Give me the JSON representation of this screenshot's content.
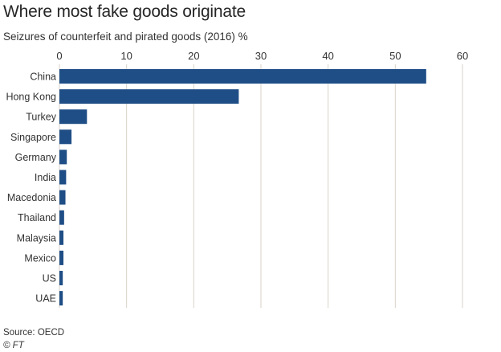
{
  "title": "Where most fake goods originate",
  "subtitle": "Seizures of counterfeit and pirated goods (2016) %",
  "source": "Source: OECD",
  "credit": "© FT",
  "colors": {
    "bar": "#1f4e86",
    "grid": "#d9d2c9",
    "text": "#333333"
  },
  "chart_data": {
    "type": "bar",
    "orientation": "horizontal",
    "title": "Where most fake goods originate",
    "subtitle": "Seizures of counterfeit and pirated goods (2016) %",
    "categories": [
      "China",
      "Hong Kong",
      "Turkey",
      "Singapore",
      "Germany",
      "India",
      "Macedonia",
      "Thailand",
      "Malaysia",
      "Mexico",
      "US",
      "UAE"
    ],
    "values": [
      54.6,
      26.7,
      4.1,
      1.8,
      1.1,
      1.0,
      0.9,
      0.7,
      0.6,
      0.6,
      0.5,
      0.5
    ],
    "xticks": [
      0,
      10,
      20,
      30,
      40,
      50,
      60
    ],
    "xlim": [
      0,
      60
    ],
    "xaxis_position": "top",
    "grid": true
  }
}
